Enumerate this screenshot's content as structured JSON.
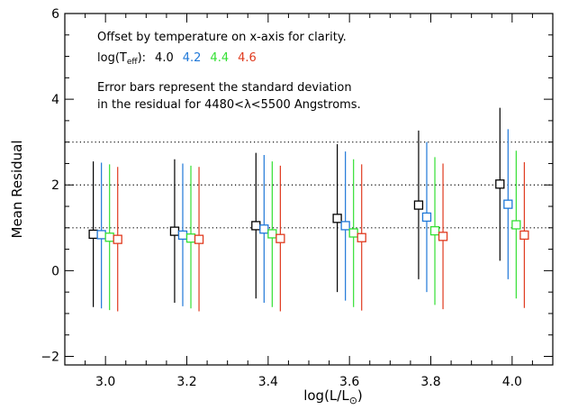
{
  "chart_data": {
    "type": "scatter",
    "xlabel": "log(L/L",
    "xlabel_sub": "⊙",
    "xlabel_close": ")",
    "ylabel": "Mean Residual",
    "xlim": [
      2.9,
      4.1
    ],
    "ylim": [
      -2.2,
      6.0
    ],
    "x_ticks": [
      3.0,
      3.2,
      3.4,
      3.6,
      3.8,
      4.0
    ],
    "x_tick_labels": [
      "3.0",
      "3.2",
      "3.4",
      "3.6",
      "3.8",
      "4.0"
    ],
    "y_ticks": [
      -2,
      0,
      2,
      4,
      6
    ],
    "y_tick_labels": [
      "−2",
      "0",
      "2",
      "4",
      "6"
    ],
    "x_minor_step": 0.05,
    "y_minor_step": 0.5,
    "reference_lines": [
      1,
      2,
      3
    ],
    "reference_line_style": "dotted",
    "note_line1": "Offset by temperature on x-axis for clarity.",
    "teff_prefix": "log(T",
    "teff_sub": "eff",
    "teff_suffix": "):",
    "note_line3": "Error bars represent the standard deviation",
    "note_line4": "in the residual for 4480<λ<5500 Angstroms.",
    "series": [
      {
        "name": "4.0",
        "color": "#000000",
        "x_offset": -0.03,
        "points": [
          {
            "x": 3.0,
            "y": 0.85,
            "lo": -0.85,
            "hi": 2.55
          },
          {
            "x": 3.2,
            "y": 0.92,
            "lo": -0.75,
            "hi": 2.6
          },
          {
            "x": 3.4,
            "y": 1.05,
            "lo": -0.65,
            "hi": 2.75
          },
          {
            "x": 3.6,
            "y": 1.22,
            "lo": -0.5,
            "hi": 2.95
          },
          {
            "x": 3.8,
            "y": 1.53,
            "lo": -0.2,
            "hi": 3.27
          },
          {
            "x": 4.0,
            "y": 2.02,
            "lo": 0.23,
            "hi": 3.8
          }
        ]
      },
      {
        "name": "4.2",
        "color": "#1f78d8",
        "x_offset": -0.01,
        "points": [
          {
            "x": 3.0,
            "y": 0.84,
            "lo": -0.88,
            "hi": 2.52
          },
          {
            "x": 3.2,
            "y": 0.83,
            "lo": -0.83,
            "hi": 2.5
          },
          {
            "x": 3.4,
            "y": 0.97,
            "lo": -0.75,
            "hi": 2.7
          },
          {
            "x": 3.6,
            "y": 1.05,
            "lo": -0.7,
            "hi": 2.78
          },
          {
            "x": 3.8,
            "y": 1.25,
            "lo": -0.5,
            "hi": 3.0
          },
          {
            "x": 4.0,
            "y": 1.55,
            "lo": -0.2,
            "hi": 3.3
          }
        ]
      },
      {
        "name": "4.4",
        "color": "#33e033",
        "x_offset": 0.01,
        "points": [
          {
            "x": 3.0,
            "y": 0.78,
            "lo": -0.92,
            "hi": 2.48
          },
          {
            "x": 3.2,
            "y": 0.76,
            "lo": -0.88,
            "hi": 2.45
          },
          {
            "x": 3.4,
            "y": 0.86,
            "lo": -0.85,
            "hi": 2.55
          },
          {
            "x": 3.6,
            "y": 0.88,
            "lo": -0.85,
            "hi": 2.6
          },
          {
            "x": 3.8,
            "y": 0.93,
            "lo": -0.8,
            "hi": 2.65
          },
          {
            "x": 4.0,
            "y": 1.07,
            "lo": -0.65,
            "hi": 2.8
          }
        ]
      },
      {
        "name": "4.6",
        "color": "#e03a1e",
        "x_offset": 0.03,
        "points": [
          {
            "x": 3.0,
            "y": 0.73,
            "lo": -0.95,
            "hi": 2.42
          },
          {
            "x": 3.2,
            "y": 0.73,
            "lo": -0.95,
            "hi": 2.42
          },
          {
            "x": 3.4,
            "y": 0.75,
            "lo": -0.95,
            "hi": 2.45
          },
          {
            "x": 3.6,
            "y": 0.77,
            "lo": -0.93,
            "hi": 2.48
          },
          {
            "x": 3.8,
            "y": 0.8,
            "lo": -0.9,
            "hi": 2.5
          },
          {
            "x": 4.0,
            "y": 0.83,
            "lo": -0.87,
            "hi": 2.53
          }
        ]
      }
    ]
  }
}
